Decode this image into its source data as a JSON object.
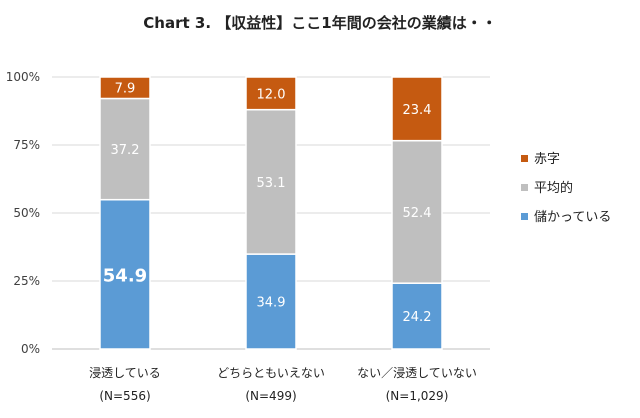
{
  "chart_data": {
    "type": "bar",
    "stacked": true,
    "title": "Chart 3. 【収益性】ここ1年間の会社の業績は・・",
    "xlabel": "",
    "ylabel": "",
    "ylim": [
      0,
      100
    ],
    "y_ticks": [
      "0%",
      "25%",
      "50%",
      "75%",
      "100%"
    ],
    "grid": true,
    "legend_position": "right",
    "categories": [
      {
        "label": "浸透している",
        "n": "(N=556)"
      },
      {
        "label": "どちらともいえない",
        "n": "(N=499)"
      },
      {
        "label": "ない／浸透していない",
        "n": "(N=1,029)"
      }
    ],
    "series": [
      {
        "name": "儲かっている",
        "color": "#5b9bd5",
        "label_color": "#ffffff",
        "values": [
          54.9,
          34.9,
          24.2
        ],
        "labels": [
          "54.9",
          "34.9",
          "24.2"
        ]
      },
      {
        "name": "平均的",
        "color": "#bfbfbf",
        "label_color": "#ffffff",
        "values": [
          37.2,
          53.1,
          52.4
        ],
        "labels": [
          "37.2",
          "53.1",
          "52.4"
        ]
      },
      {
        "name": "赤字",
        "color": "#c55a11",
        "label_color": "#ffffff",
        "values": [
          7.9,
          12.0,
          23.4
        ],
        "labels": [
          "7.9",
          "12.0",
          "23.4"
        ]
      }
    ],
    "legend_order": [
      "赤字",
      "平均的",
      "儲かっている"
    ],
    "emphasized_label": "54.9"
  }
}
